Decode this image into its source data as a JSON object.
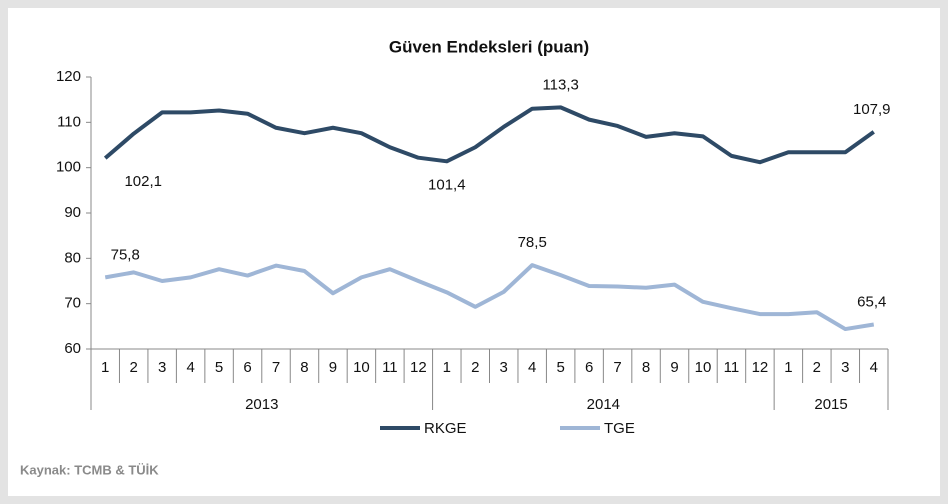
{
  "chart_data": {
    "type": "line",
    "title": "Güven Endeksleri (puan)",
    "categories": [
      "1",
      "2",
      "3",
      "4",
      "5",
      "6",
      "7",
      "8",
      "9",
      "10",
      "11",
      "12",
      "1",
      "2",
      "3",
      "4",
      "5",
      "6",
      "7",
      "8",
      "9",
      "10",
      "11",
      "12",
      "1",
      "2",
      "3",
      "4"
    ],
    "years": [
      "2013",
      "2014",
      "2015"
    ],
    "series": [
      {
        "name": "RKGE",
        "color": "#2e4a66",
        "values": [
          102.1,
          107.5,
          112.2,
          112.2,
          112.6,
          111.9,
          108.8,
          107.6,
          108.8,
          107.6,
          104.5,
          102.2,
          101.4,
          104.5,
          109.0,
          113.0,
          113.3,
          110.6,
          109.2,
          106.8,
          107.6,
          106.9,
          102.6,
          101.2,
          103.4,
          103.4,
          103.4,
          107.9
        ],
        "value_labels": [
          "102,1",
          null,
          null,
          null,
          null,
          null,
          null,
          null,
          null,
          null,
          null,
          null,
          "101,4",
          null,
          null,
          null,
          "113,3",
          null,
          null,
          null,
          null,
          null,
          null,
          null,
          null,
          null,
          null,
          "107,9"
        ]
      },
      {
        "name": "TGE",
        "color": "#9fb6d6",
        "values": [
          75.8,
          76.9,
          75.0,
          75.8,
          77.6,
          76.2,
          78.4,
          77.2,
          72.3,
          75.8,
          77.6,
          75.0,
          72.5,
          69.3,
          72.6,
          78.5,
          76.3,
          73.9,
          73.8,
          73.5,
          74.2,
          70.4,
          69.0,
          67.7,
          67.7,
          68.1,
          64.4,
          65.4
        ],
        "value_labels": [
          "75,8",
          null,
          null,
          null,
          null,
          null,
          null,
          null,
          null,
          null,
          null,
          null,
          null,
          null,
          null,
          "78,5",
          null,
          null,
          null,
          null,
          null,
          null,
          null,
          null,
          null,
          null,
          null,
          "65,4"
        ]
      }
    ],
    "ylim": [
      60,
      120
    ],
    "yticks": [
      60,
      70,
      80,
      90,
      100,
      110,
      120
    ],
    "grid": false,
    "legend": "bottom",
    "source": "Kaynak: TCMB & TÜİK"
  }
}
